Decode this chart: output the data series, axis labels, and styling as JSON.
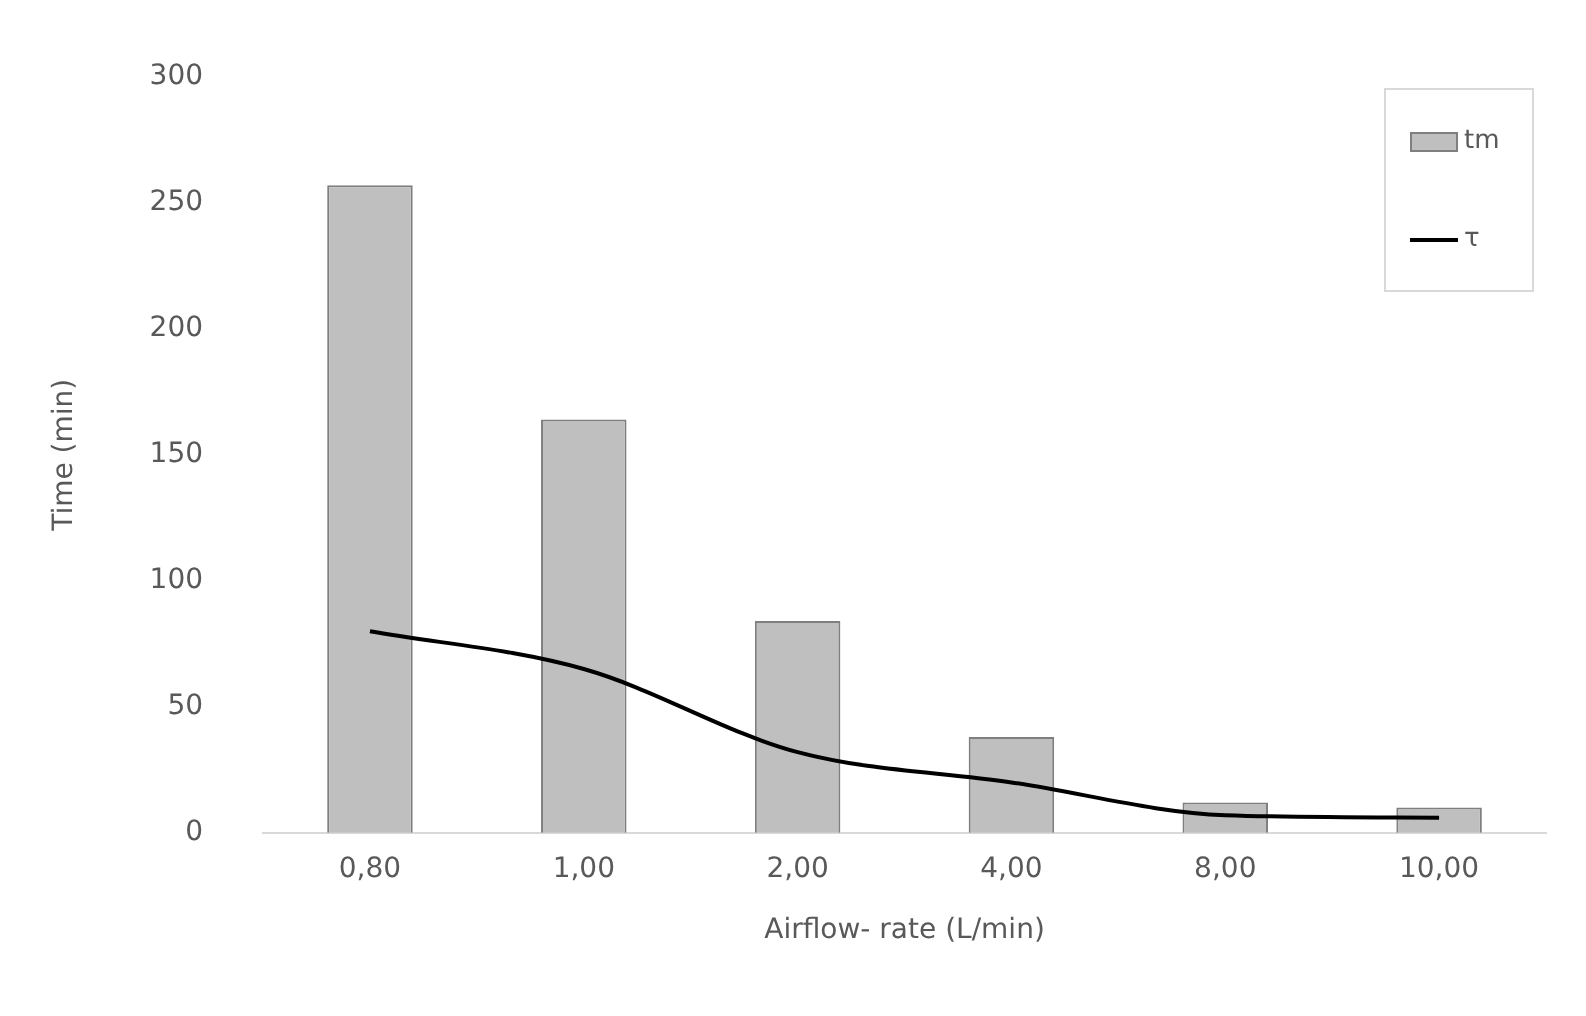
{
  "chart_data": {
    "type": "bar",
    "xlabel": "Airflow- rate (L/min)",
    "ylabel": "Time (min)",
    "categories": [
      "0,80",
      "1,00",
      "2,00",
      "4,00",
      "8,00",
      "10,00"
    ],
    "series": [
      {
        "name": "tm",
        "color": "#bfbfbf",
        "values": [
          257,
          164,
          84,
          38,
          12,
          10
        ]
      },
      {
        "name": "τ",
        "type": "line",
        "color": "#000000",
        "values": [
          80,
          65,
          32,
          20,
          7,
          6
        ]
      }
    ],
    "ylim": [
      0,
      300
    ],
    "yticks": [
      0,
      50,
      100,
      150,
      200,
      250,
      300
    ],
    "grid": false,
    "legend": "top right",
    "marker": "none"
  }
}
